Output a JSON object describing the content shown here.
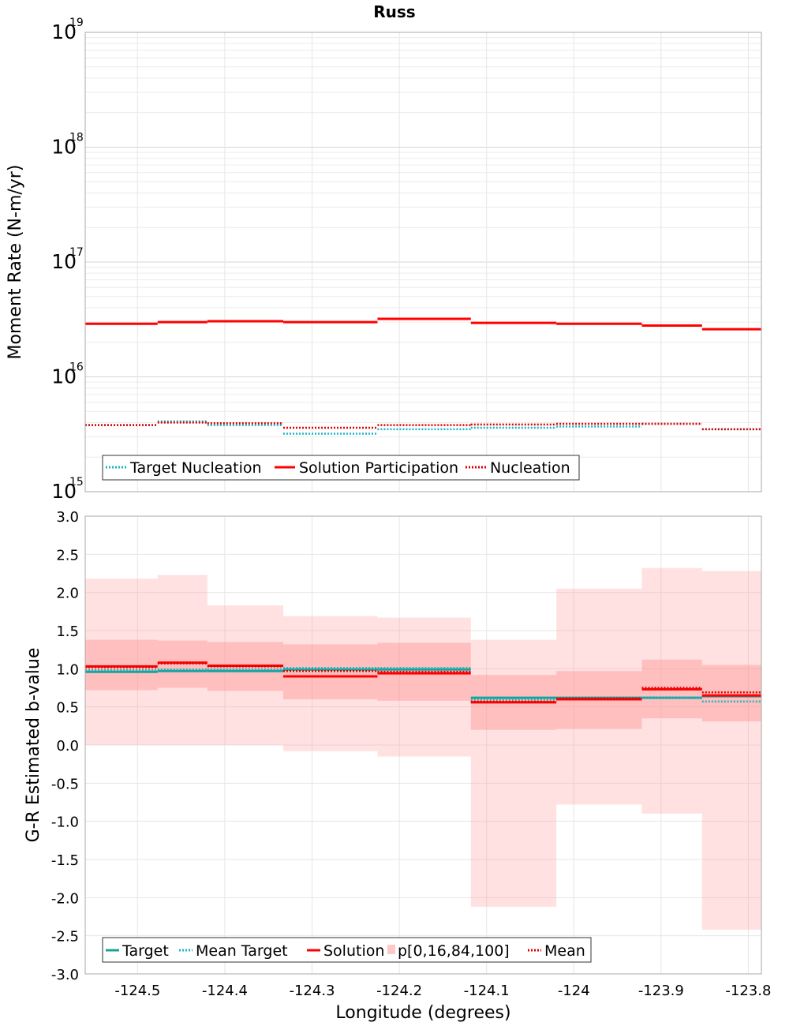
{
  "title": "Russ",
  "chart_data": [
    {
      "type": "line",
      "subtype": "step",
      "xlim": [
        -124.56,
        -123.785
      ],
      "ylim": [
        1000000000000000.0,
        1e+19
      ],
      "yscale": "log",
      "ylabel": "Moment Rate (N-m/yr)",
      "grid": true,
      "legend_position": "bottom-left",
      "ytick_exponents": [
        "19",
        "18",
        "17",
        "16",
        "15"
      ],
      "bins": [
        [
          -124.56,
          -124.477
        ],
        [
          -124.477,
          -124.42
        ],
        [
          -124.42,
          -124.333
        ],
        [
          -124.333,
          -124.225
        ],
        [
          -124.225,
          -124.118
        ],
        [
          -124.118,
          -124.02
        ],
        [
          -124.02,
          -123.922
        ],
        [
          -123.922,
          -123.853
        ],
        [
          -123.853,
          -123.785
        ]
      ],
      "series": [
        {
          "name": "Target Nucleation",
          "color": "#17b8c8",
          "style": "dotted",
          "values": [
            3800000000000000.0,
            4100000000000000.0,
            3800000000000000.0,
            3200000000000000.0,
            3500000000000000.0,
            3600000000000000.0,
            3700000000000000.0,
            3900000000000000.0,
            3500000000000000.0
          ]
        },
        {
          "name": "Solution Participation",
          "color": "#ff0000",
          "style": "solid",
          "values": [
            2.9e+16,
            3e+16,
            3.05e+16,
            3e+16,
            3.2e+16,
            2.95e+16,
            2.9e+16,
            2.8e+16,
            2.6e+16
          ]
        },
        {
          "name": "Nucleation",
          "color": "#dd0000",
          "style": "dotted",
          "values": [
            3800000000000000.0,
            4000000000000000.0,
            3950000000000000.0,
            3600000000000000.0,
            3800000000000000.0,
            3850000000000000.0,
            3900000000000000.0,
            3900000000000000.0,
            3500000000000000.0
          ]
        }
      ],
      "legend": [
        "Target Nucleation",
        "Solution Participation",
        "Nucleation"
      ]
    },
    {
      "type": "line",
      "subtype": "step",
      "xlim": [
        -124.56,
        -123.785
      ],
      "ylim": [
        -3.0,
        3.0
      ],
      "xlabel": "Longitude (degrees)",
      "ylabel": "G-R Estimated b-value",
      "grid": true,
      "legend_position": "bottom-left",
      "xticks": [
        "-124.5",
        "-124.4",
        "-124.3",
        "-124.2",
        "-124.1",
        "-124",
        "-123.9",
        "-123.8"
      ],
      "xtick_values": [
        -124.5,
        -124.4,
        -124.3,
        -124.2,
        -124.1,
        -124.0,
        -123.9,
        -123.8
      ],
      "yticks": [
        "3.0",
        "2.5",
        "2.0",
        "1.5",
        "1.0",
        "0.5",
        "0.0",
        "-0.5",
        "-1.0",
        "-1.5",
        "-2.0",
        "-2.5",
        "-3.0"
      ],
      "ytick_values": [
        3.0,
        2.5,
        2.0,
        1.5,
        1.0,
        0.5,
        0.0,
        -0.5,
        -1.0,
        -1.5,
        -2.0,
        -2.5,
        -3.0
      ],
      "bins": [
        [
          -124.56,
          -124.477
        ],
        [
          -124.477,
          -124.42
        ],
        [
          -124.42,
          -124.333
        ],
        [
          -124.333,
          -124.225
        ],
        [
          -124.225,
          -124.118
        ],
        [
          -124.118,
          -124.02
        ],
        [
          -124.02,
          -123.922
        ],
        [
          -123.922,
          -123.853
        ],
        [
          -123.853,
          -123.785
        ]
      ],
      "band_name": "p[0,16,84,100]",
      "bands": {
        "p0": [
          0.0,
          0.0,
          0.0,
          -0.08,
          -0.15,
          -2.12,
          -0.78,
          -0.9,
          -2.42
        ],
        "p16": [
          0.72,
          0.75,
          0.71,
          0.6,
          0.58,
          0.2,
          0.21,
          0.35,
          0.31
        ],
        "p84": [
          1.38,
          1.37,
          1.35,
          1.32,
          1.34,
          0.92,
          0.97,
          1.12,
          1.05
        ],
        "p100": [
          2.18,
          2.23,
          1.83,
          1.69,
          1.67,
          1.38,
          2.05,
          2.32,
          2.28
        ]
      },
      "series": [
        {
          "name": "Target",
          "color": "#17a398",
          "style": "solid",
          "values": [
            0.96,
            0.97,
            0.97,
            0.99,
            0.99,
            0.62,
            0.62,
            0.62,
            0.64
          ]
        },
        {
          "name": "Mean Target",
          "color": "#17b8c8",
          "style": "dotted",
          "values": [
            0.98,
            0.99,
            0.99,
            1.01,
            1.01,
            0.6,
            0.61,
            0.62,
            0.57
          ]
        },
        {
          "name": "Solution",
          "color": "#ff0000",
          "style": "solid",
          "values": [
            1.03,
            1.08,
            1.04,
            0.9,
            0.94,
            0.56,
            0.6,
            0.73,
            0.65
          ]
        },
        {
          "name": "Mean",
          "color": "#dd0000",
          "style": "dotted",
          "values": [
            1.02,
            1.07,
            1.03,
            0.97,
            0.96,
            0.57,
            0.61,
            0.75,
            0.69
          ]
        }
      ],
      "legend": [
        "Target",
        "Mean Target",
        "Solution",
        "p[0,16,84,100]",
        "Mean"
      ]
    }
  ]
}
